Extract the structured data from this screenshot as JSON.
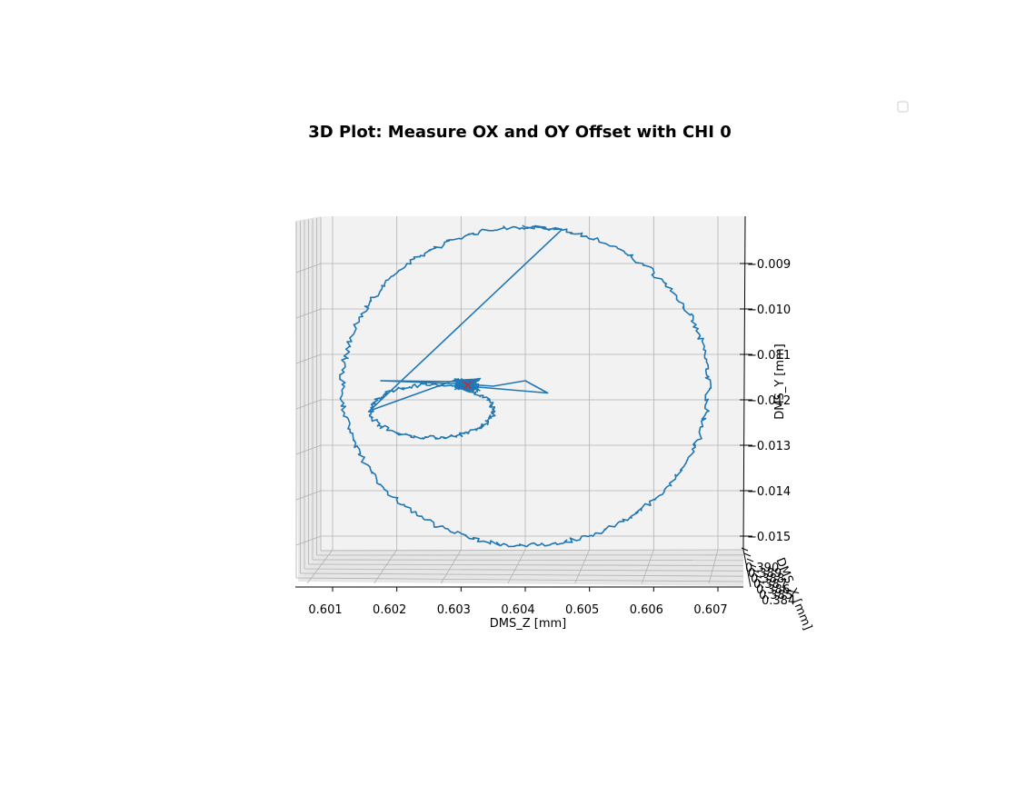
{
  "chart_data": {
    "type": "line",
    "projection": "3d",
    "title": "3D Plot: Measure OX and OY Offset with CHI 0",
    "xlabel": "DMS_Z [mm]",
    "ylabel": "DMS_Y [mm]",
    "zlabel": "DMS_X [mm]",
    "x_ticks": [
      "0.601",
      "0.602",
      "0.603",
      "0.604",
      "0.605",
      "0.606",
      "0.607"
    ],
    "y_ticks": [
      "−0.009",
      "−0.010",
      "−0.011",
      "−0.012",
      "−0.013",
      "−0.014",
      "−0.015"
    ],
    "z_ticks": [
      "0.390",
      "0.389",
      "0.388",
      "0.387",
      "0.386",
      "0.385",
      "0.384"
    ],
    "xlim": [
      0.6005,
      0.6075
    ],
    "ylim": [
      -0.0151,
      -0.0082
    ],
    "grid": true,
    "legend": {
      "placement": "top-right",
      "entries": []
    },
    "series": [
      {
        "color": "#1f77b4",
        "loop_center": [
          0.604,
          -0.0117
        ],
        "loop_radius": [
          0.00285,
          0.0035
        ],
        "inner_loop_center": [
          0.60255,
          -0.01225
        ],
        "inner_loop_radius": [
          0.00095,
          0.00058
        ],
        "spike_points": [
          [
            0.603,
            -0.0116
          ],
          [
            0.60175,
            -0.01158
          ],
          [
            0.603,
            -0.01165
          ],
          [
            0.6035,
            -0.0117
          ],
          [
            0.604,
            -0.01158
          ],
          [
            0.60435,
            -0.01185
          ],
          [
            0.6031,
            -0.0117
          ],
          [
            0.60305,
            -0.01175
          ]
        ]
      }
    ],
    "marker": {
      "x": 0.6031,
      "y": -0.01168,
      "symbol": "x",
      "color": "#d62728"
    }
  }
}
